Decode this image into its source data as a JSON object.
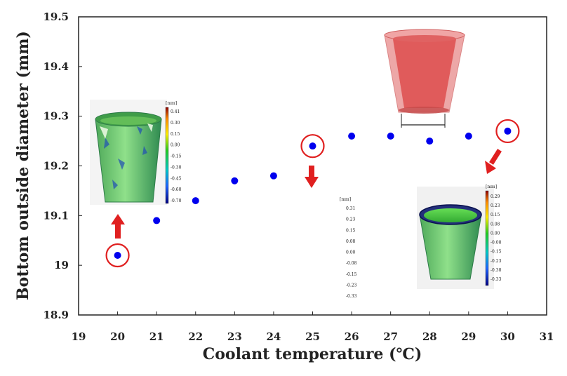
{
  "chart_data": {
    "type": "scatter",
    "xlabel": "Coolant temperature (℃)",
    "ylabel": "Bottom outside diameter (mm)",
    "xlim": [
      19,
      31
    ],
    "ylim": [
      18.9,
      19.5
    ],
    "xticks": [
      "19",
      "20",
      "21",
      "22",
      "23",
      "24",
      "25",
      "26",
      "27",
      "28",
      "29",
      "30",
      "31"
    ],
    "yticks": [
      "18.9",
      "19",
      "19.1",
      "19.2",
      "19.3",
      "19.4",
      "19.5"
    ],
    "grid": false,
    "x": [
      20,
      21,
      22,
      23,
      24,
      25,
      26,
      27,
      28,
      29,
      30
    ],
    "y": [
      19.02,
      19.09,
      19.13,
      19.17,
      19.18,
      19.24,
      19.26,
      19.26,
      19.25,
      19.26,
      19.27
    ],
    "marker_color": "#0000ee",
    "highlighted_x": [
      20,
      25,
      30
    ],
    "highlight_color": "#e02020",
    "colorbars": [
      {
        "unit": "[mm]",
        "labels": [
          "0.41",
          "0.30",
          "0.15",
          "0.00",
          "-0.15",
          "-0.30",
          "-0.45",
          "-0.60",
          "-0.70"
        ]
      },
      {
        "unit": "[mm]",
        "labels": [
          "0.31",
          "0.23",
          "0.15",
          "0.08",
          "0.00",
          "-0.08",
          "-0.15",
          "-0.23",
          "-0.33"
        ]
      },
      {
        "unit": "[mm]",
        "labels": [
          "0.29",
          "0.23",
          "0.15",
          "0.08",
          "0.00",
          "-0.08",
          "-0.15",
          "-0.23",
          "-0.30",
          "-0.33"
        ]
      }
    ]
  }
}
